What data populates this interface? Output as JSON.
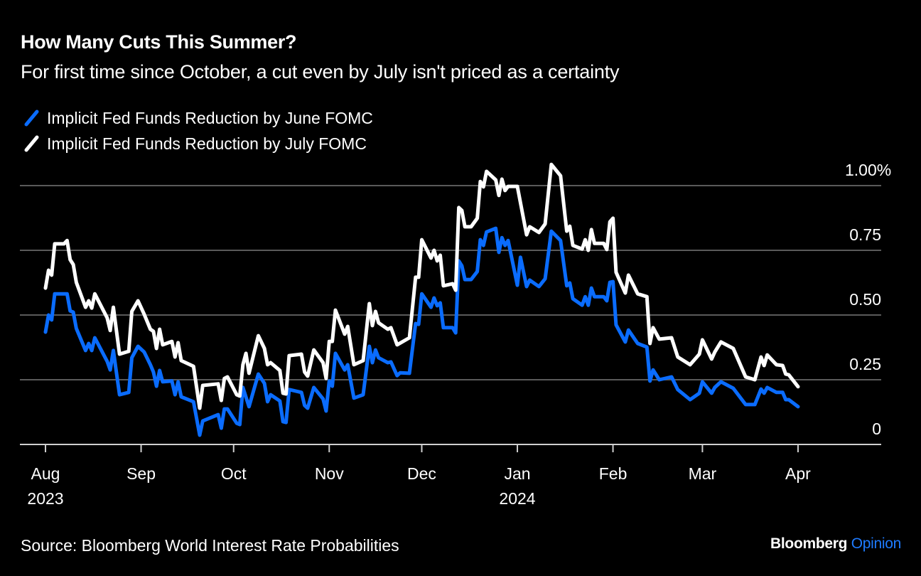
{
  "title": "How Many Cuts This Summer?",
  "subtitle": "For first time since October, a cut even by July isn't priced as a certainty",
  "legend": [
    {
      "label": "Implicit Fed Funds Reduction by June FOMC",
      "color": "#0a6cff"
    },
    {
      "label": "Implicit Fed Funds Reduction by July FOMC",
      "color": "#ffffff"
    }
  ],
  "source": "Source: Bloomberg World Interest Rate Probabilities",
  "brand": {
    "name": "Bloomberg",
    "suffix": "Opinion",
    "suffix_color": "#1e7bff"
  },
  "chart_data": {
    "type": "line",
    "title": "How Many Cuts This Summer?",
    "subtitle": "For first time since October, a cut even by July isn't priced as a certainty",
    "xlabel": "",
    "ylabel": "",
    "x_unit": "days since 2023-08-01",
    "x_start_date": "2023-08-01",
    "xlim_days": [
      -9,
      271
    ],
    "ylim": [
      0,
      1.0
    ],
    "y_ticks": [
      {
        "value": 0,
        "label": "0"
      },
      {
        "value": 0.25,
        "label": "0.25"
      },
      {
        "value": 0.5,
        "label": "0.50"
      },
      {
        "value": 0.75,
        "label": "0.75"
      },
      {
        "value": 1.0,
        "label": "1.00%"
      }
    ],
    "x_ticks": [
      {
        "day": 0,
        "label": "Aug",
        "sublabel": "2023"
      },
      {
        "day": 31,
        "label": "Sep",
        "sublabel": ""
      },
      {
        "day": 61,
        "label": "Oct",
        "sublabel": ""
      },
      {
        "day": 92,
        "label": "Nov",
        "sublabel": ""
      },
      {
        "day": 122,
        "label": "Dec",
        "sublabel": ""
      },
      {
        "day": 153,
        "label": "Jan",
        "sublabel": "2024"
      },
      {
        "day": 184,
        "label": "Feb",
        "sublabel": ""
      },
      {
        "day": 213,
        "label": "Mar",
        "sublabel": ""
      },
      {
        "day": 244,
        "label": "Apr",
        "sublabel": ""
      }
    ],
    "grid": true,
    "legend_position": "top-left",
    "series": [
      {
        "name": "Implicit Fed Funds Reduction by June FOMC",
        "color": "#0a6cff",
        "points": [
          [
            0,
            0.434
          ],
          [
            1,
            0.5
          ],
          [
            2,
            0.481
          ],
          [
            3,
            0.582
          ],
          [
            6,
            0.582
          ],
          [
            7,
            0.582
          ],
          [
            8,
            0.516
          ],
          [
            9,
            0.511
          ],
          [
            10,
            0.448
          ],
          [
            13,
            0.363
          ],
          [
            14,
            0.39
          ],
          [
            15,
            0.363
          ],
          [
            16,
            0.412
          ],
          [
            20,
            0.321
          ],
          [
            21,
            0.288
          ],
          [
            22,
            0.363
          ],
          [
            24,
            0.192
          ],
          [
            27,
            0.201
          ],
          [
            28,
            0.335
          ],
          [
            30,
            0.379
          ],
          [
            32,
            0.357
          ],
          [
            34,
            0.308
          ],
          [
            35,
            0.28
          ],
          [
            36,
            0.225
          ],
          [
            37,
            0.286
          ],
          [
            38,
            0.242
          ],
          [
            41,
            0.245
          ],
          [
            42,
            0.192
          ],
          [
            43,
            0.242
          ],
          [
            44,
            0.184
          ],
          [
            48,
            0.165
          ],
          [
            50,
            0.036
          ],
          [
            51,
            0.091
          ],
          [
            56,
            0.115
          ],
          [
            57,
            0.063
          ],
          [
            58,
            0.137
          ],
          [
            59,
            0.137
          ],
          [
            62,
            0.082
          ],
          [
            63,
            0.077
          ],
          [
            64,
            0.22
          ],
          [
            66,
            0.146
          ],
          [
            69,
            0.272
          ],
          [
            71,
            0.236
          ],
          [
            72,
            0.165
          ],
          [
            73,
            0.192
          ],
          [
            76,
            0.168
          ],
          [
            77,
            0.088
          ],
          [
            78,
            0.085
          ],
          [
            79,
            0.212
          ],
          [
            83,
            0.201
          ],
          [
            84,
            0.151
          ],
          [
            85,
            0.14
          ],
          [
            87,
            0.22
          ],
          [
            90,
            0.176
          ],
          [
            91,
            0.129
          ],
          [
            92,
            0.245
          ],
          [
            93,
            0.225
          ],
          [
            94,
            0.352
          ],
          [
            97,
            0.288
          ],
          [
            98,
            0.308
          ],
          [
            100,
            0.179
          ],
          [
            103,
            0.192
          ],
          [
            105,
            0.379
          ],
          [
            106,
            0.316
          ],
          [
            107,
            0.365
          ],
          [
            108,
            0.335
          ],
          [
            111,
            0.316
          ],
          [
            112,
            0.319
          ],
          [
            114,
            0.266
          ],
          [
            115,
            0.277
          ],
          [
            118,
            0.275
          ],
          [
            120,
            0.467
          ],
          [
            121,
            0.464
          ],
          [
            122,
            0.582
          ],
          [
            125,
            0.53
          ],
          [
            126,
            0.566
          ],
          [
            127,
            0.536
          ],
          [
            128,
            0.547
          ],
          [
            129,
            0.451
          ],
          [
            132,
            0.451
          ],
          [
            133,
            0.431
          ],
          [
            134,
            0.709
          ],
          [
            135,
            0.69
          ],
          [
            136,
            0.637
          ],
          [
            138,
            0.637
          ],
          [
            140,
            0.668
          ],
          [
            141,
            0.791
          ],
          [
            142,
            0.769
          ],
          [
            143,
            0.821
          ],
          [
            146,
            0.835
          ],
          [
            147,
            0.742
          ],
          [
            148,
            0.799
          ],
          [
            149,
            0.769
          ],
          [
            150,
            0.788
          ],
          [
            153,
            0.615
          ],
          [
            154,
            0.723
          ],
          [
            156,
            0.61
          ],
          [
            157,
            0.635
          ],
          [
            160,
            0.61
          ],
          [
            162,
            0.64
          ],
          [
            164,
            0.824
          ],
          [
            167,
            0.788
          ],
          [
            169,
            0.613
          ],
          [
            170,
            0.624
          ],
          [
            171,
            0.563
          ],
          [
            174,
            0.538
          ],
          [
            175,
            0.571
          ],
          [
            176,
            0.538
          ],
          [
            177,
            0.604
          ],
          [
            178,
            0.571
          ],
          [
            181,
            0.571
          ],
          [
            182,
            0.555
          ],
          [
            183,
            0.626
          ],
          [
            184,
            0.629
          ],
          [
            185,
            0.462
          ],
          [
            188,
            0.396
          ],
          [
            189,
            0.442
          ],
          [
            192,
            0.39
          ],
          [
            195,
            0.376
          ],
          [
            196,
            0.245
          ],
          [
            197,
            0.288
          ],
          [
            199,
            0.25
          ],
          [
            203,
            0.261
          ],
          [
            205,
            0.212
          ],
          [
            209,
            0.173
          ],
          [
            212,
            0.198
          ],
          [
            213,
            0.242
          ],
          [
            216,
            0.198
          ],
          [
            217,
            0.22
          ],
          [
            219,
            0.242
          ],
          [
            223,
            0.217
          ],
          [
            227,
            0.154
          ],
          [
            230,
            0.154
          ],
          [
            232,
            0.214
          ],
          [
            233,
            0.198
          ],
          [
            234,
            0.22
          ],
          [
            237,
            0.201
          ],
          [
            239,
            0.201
          ],
          [
            240,
            0.173
          ],
          [
            241,
            0.173
          ],
          [
            244,
            0.146
          ]
        ]
      },
      {
        "name": "Implicit Fed Funds Reduction by July FOMC",
        "color": "#ffffff",
        "points": [
          [
            0,
            0.604
          ],
          [
            1,
            0.673
          ],
          [
            2,
            0.654
          ],
          [
            3,
            0.775
          ],
          [
            6,
            0.775
          ],
          [
            7,
            0.788
          ],
          [
            8,
            0.714
          ],
          [
            9,
            0.695
          ],
          [
            10,
            0.626
          ],
          [
            13,
            0.53
          ],
          [
            14,
            0.555
          ],
          [
            15,
            0.527
          ],
          [
            16,
            0.582
          ],
          [
            20,
            0.489
          ],
          [
            21,
            0.44
          ],
          [
            22,
            0.53
          ],
          [
            24,
            0.349
          ],
          [
            27,
            0.36
          ],
          [
            28,
            0.514
          ],
          [
            30,
            0.555
          ],
          [
            32,
            0.503
          ],
          [
            34,
            0.445
          ],
          [
            35,
            0.437
          ],
          [
            36,
            0.371
          ],
          [
            37,
            0.445
          ],
          [
            38,
            0.385
          ],
          [
            41,
            0.398
          ],
          [
            42,
            0.338
          ],
          [
            43,
            0.393
          ],
          [
            44,
            0.324
          ],
          [
            48,
            0.302
          ],
          [
            50,
            0.14
          ],
          [
            51,
            0.228
          ],
          [
            56,
            0.234
          ],
          [
            57,
            0.17
          ],
          [
            58,
            0.255
          ],
          [
            59,
            0.261
          ],
          [
            62,
            0.192
          ],
          [
            63,
            0.187
          ],
          [
            64,
            0.308
          ],
          [
            65,
            0.352
          ],
          [
            66,
            0.275
          ],
          [
            69,
            0.42
          ],
          [
            71,
            0.371
          ],
          [
            72,
            0.308
          ],
          [
            73,
            0.316
          ],
          [
            76,
            0.286
          ],
          [
            77,
            0.198
          ],
          [
            78,
            0.195
          ],
          [
            79,
            0.343
          ],
          [
            83,
            0.349
          ],
          [
            84,
            0.28
          ],
          [
            85,
            0.264
          ],
          [
            87,
            0.365
          ],
          [
            90,
            0.316
          ],
          [
            91,
            0.255
          ],
          [
            92,
            0.398
          ],
          [
            93,
            0.398
          ],
          [
            94,
            0.519
          ],
          [
            97,
            0.426
          ],
          [
            98,
            0.456
          ],
          [
            100,
            0.308
          ],
          [
            103,
            0.324
          ],
          [
            105,
            0.544
          ],
          [
            106,
            0.459
          ],
          [
            107,
            0.514
          ],
          [
            108,
            0.47
          ],
          [
            111,
            0.445
          ],
          [
            112,
            0.451
          ],
          [
            114,
            0.385
          ],
          [
            118,
            0.412
          ],
          [
            120,
            0.646
          ],
          [
            121,
            0.646
          ],
          [
            122,
            0.791
          ],
          [
            125,
            0.72
          ],
          [
            126,
            0.75
          ],
          [
            127,
            0.709
          ],
          [
            128,
            0.731
          ],
          [
            129,
            0.613
          ],
          [
            132,
            0.621
          ],
          [
            133,
            0.596
          ],
          [
            134,
            0.915
          ],
          [
            135,
            0.904
          ],
          [
            136,
            0.841
          ],
          [
            138,
            0.841
          ],
          [
            140,
            0.874
          ],
          [
            141,
            1.016
          ],
          [
            142,
            0.995
          ],
          [
            143,
            1.055
          ],
          [
            145,
            1.033
          ],
          [
            146,
            1.022
          ],
          [
            147,
            0.962
          ],
          [
            148,
            1.025
          ],
          [
            149,
            0.981
          ],
          [
            150,
            0.997
          ],
          [
            153,
            0.997
          ],
          [
            156,
            0.81
          ],
          [
            157,
            0.841
          ],
          [
            160,
            0.819
          ],
          [
            162,
            0.852
          ],
          [
            164,
            1.082
          ],
          [
            167,
            1.038
          ],
          [
            169,
            0.824
          ],
          [
            170,
            0.843
          ],
          [
            171,
            0.769
          ],
          [
            174,
            0.755
          ],
          [
            175,
            0.791
          ],
          [
            176,
            0.75
          ],
          [
            177,
            0.83
          ],
          [
            178,
            0.777
          ],
          [
            181,
            0.777
          ],
          [
            182,
            0.753
          ],
          [
            183,
            0.86
          ],
          [
            184,
            0.874
          ],
          [
            185,
            0.665
          ],
          [
            188,
            0.585
          ],
          [
            189,
            0.654
          ],
          [
            192,
            0.582
          ],
          [
            195,
            0.571
          ],
          [
            196,
            0.39
          ],
          [
            197,
            0.451
          ],
          [
            199,
            0.407
          ],
          [
            203,
            0.412
          ],
          [
            205,
            0.338
          ],
          [
            209,
            0.308
          ],
          [
            212,
            0.349
          ],
          [
            213,
            0.404
          ],
          [
            216,
            0.33
          ],
          [
            217,
            0.357
          ],
          [
            219,
            0.396
          ],
          [
            223,
            0.371
          ],
          [
            227,
            0.261
          ],
          [
            230,
            0.25
          ],
          [
            232,
            0.338
          ],
          [
            233,
            0.305
          ],
          [
            234,
            0.346
          ],
          [
            237,
            0.308
          ],
          [
            239,
            0.305
          ],
          [
            240,
            0.272
          ],
          [
            241,
            0.269
          ],
          [
            244,
            0.223
          ]
        ]
      }
    ]
  }
}
